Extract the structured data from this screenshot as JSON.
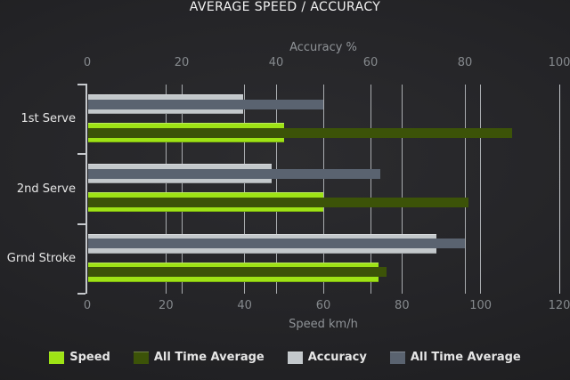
{
  "title": "AVERAGE SPEED / ACCURACY",
  "chart_data": {
    "type": "bar",
    "orientation": "horizontal",
    "title": "AVERAGE SPEED / ACCURACY",
    "categories": [
      "1st Serve",
      "2nd Serve",
      "Grnd Stroke"
    ],
    "axes": {
      "top": {
        "title": "Accuracy %",
        "min": 0,
        "max": 100,
        "ticks": [
          0,
          20,
          40,
          60,
          80,
          100
        ]
      },
      "bottom": {
        "title": "Speed km/h",
        "min": 0,
        "max": 120,
        "ticks": [
          0,
          20,
          40,
          60,
          80,
          100,
          120
        ]
      }
    },
    "series": [
      {
        "id": "speed",
        "name": "Speed",
        "axis": "bottom",
        "color": "#9EE315",
        "values": [
          50,
          60,
          74
        ]
      },
      {
        "id": "speed-all-time-average",
        "name": "All Time Average",
        "axis": "bottom",
        "color": "#3C5308",
        "values": [
          108,
          97,
          76
        ]
      },
      {
        "id": "accuracy",
        "name": "Accuracy",
        "axis": "top",
        "color": "#C3C8CB",
        "values": [
          33,
          39,
          74
        ]
      },
      {
        "id": "accuracy-all-time-average",
        "name": "All Time Average",
        "axis": "top",
        "color": "#5A6370",
        "values": [
          50,
          62,
          80
        ]
      }
    ],
    "legend": [
      {
        "id": "speed",
        "label": "Speed",
        "color": "#9EE315"
      },
      {
        "id": "speed-all-time-average",
        "label": "All Time Average",
        "color": "#3C5308"
      },
      {
        "id": "accuracy",
        "label": "Accuracy",
        "color": "#C3C8CB"
      },
      {
        "id": "accuracy-all-time-average",
        "label": "All Time Average",
        "color": "#5A6370"
      }
    ],
    "grid": true,
    "legend_position": "bottom"
  },
  "colors": {
    "background_center": "#2B2B2E",
    "background_edge": "#18181A",
    "gridline": "#C9CDD1",
    "axis_line": "#D8DCDF",
    "tick_text": "#85898D",
    "axis_title_text": "#8F9397",
    "category_text": "#E6E6E6",
    "title_text": "#F2F2F2",
    "legend_text": "#E6E6E6"
  }
}
